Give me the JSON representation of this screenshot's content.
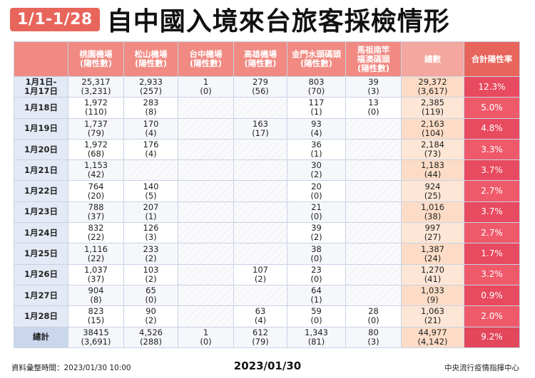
{
  "header": {
    "badge": "1/1-1/28",
    "title": "自中國入境來台旅客採檢情形"
  },
  "columns": [
    "",
    "桃園機場\n(陽性數)",
    "松山機場\n(陽性數)",
    "台中機場\n(陽性數)",
    "高雄機場\n(陽性數)",
    "金門水頭碼頭\n(陽性數)",
    "馬祖南竿\n福澳碼頭\n(陽性數)",
    "總數",
    "合計陽性率"
  ],
  "rows": [
    {
      "label": "1月1日-\n1月17日",
      "cells": [
        "25,317\n(3,231)",
        "2,933\n(257)",
        "1\n(0)",
        "279\n(56)",
        "803\n(70)",
        "39\n(3)"
      ],
      "total": "29,372\n(3,617)",
      "rate": "12.3%"
    },
    {
      "label": "1月18日",
      "cells": [
        "1,972\n(110)",
        "283\n(8)",
        "",
        "",
        "117\n(1)",
        "13\n(0)"
      ],
      "total": "2,385\n(119)",
      "rate": "5.0%"
    },
    {
      "label": "1月19日",
      "cells": [
        "1,737\n(79)",
        "170\n(4)",
        "",
        "163\n(17)",
        "93\n(4)",
        ""
      ],
      "total": "2,163\n(104)",
      "rate": "4.8%"
    },
    {
      "label": "1月20日",
      "cells": [
        "1,972\n(68)",
        "176\n(4)",
        "",
        "",
        "36\n(1)",
        ""
      ],
      "total": "2,184\n(73)",
      "rate": "3.3%"
    },
    {
      "label": "1月21日",
      "cells": [
        "1,153\n(42)",
        "",
        "",
        "",
        "30\n(2)",
        ""
      ],
      "total": "1,183\n(44)",
      "rate": "3.7%"
    },
    {
      "label": "1月22日",
      "cells": [
        "764\n(20)",
        "140\n(5)",
        "",
        "",
        "20\n(0)",
        ""
      ],
      "total": "924\n(25)",
      "rate": "2.7%"
    },
    {
      "label": "1月23日",
      "cells": [
        "788\n(37)",
        "207\n(1)",
        "",
        "",
        "21\n(0)",
        ""
      ],
      "total": "1,016\n(38)",
      "rate": "3.7%"
    },
    {
      "label": "1月24日",
      "cells": [
        "832\n(22)",
        "126\n(3)",
        "",
        "",
        "39\n(2)",
        ""
      ],
      "total": "997\n(27)",
      "rate": "2.7%"
    },
    {
      "label": "1月25日",
      "cells": [
        "1,116\n(22)",
        "233\n(2)",
        "",
        "",
        "38\n(0)",
        ""
      ],
      "total": "1,387\n(24)",
      "rate": "1.7%"
    },
    {
      "label": "1月26日",
      "cells": [
        "1,037\n(37)",
        "103\n(2)",
        "",
        "107\n(2)",
        "23\n(0)",
        ""
      ],
      "total": "1,270\n(41)",
      "rate": "3.2%"
    },
    {
      "label": "1月27日",
      "cells": [
        "904\n(8)",
        "65\n(0)",
        "",
        "",
        "64\n(1)",
        ""
      ],
      "total": "1,033\n(9)",
      "rate": "0.9%"
    },
    {
      "label": "1月28日",
      "cells": [
        "823\n(15)",
        "90\n(2)",
        "",
        "63\n(4)",
        "59\n(0)",
        "28\n(0)"
      ],
      "total": "1,063\n(21)",
      "rate": "2.0%"
    },
    {
      "label": "總計",
      "cells": [
        "38415\n(3,691)",
        "4,526\n(288)",
        "1\n(0)",
        "612\n(79)",
        "1,343\n(81)",
        "80\n(3)"
      ],
      "total": "44,977\n(4,142)",
      "rate": "9.2%"
    }
  ],
  "footer": {
    "left": "資料彙整時間：2023/01/30  10:00",
    "center": "2023/01/30",
    "right": "中央流行疫情指揮中心"
  },
  "colors": {
    "accent": "#e8655c",
    "header_cell": "#f08a82",
    "rate_cell": "#e84a5f",
    "total_cell": "#fde6d6",
    "row_label": "#e4eaf5"
  }
}
